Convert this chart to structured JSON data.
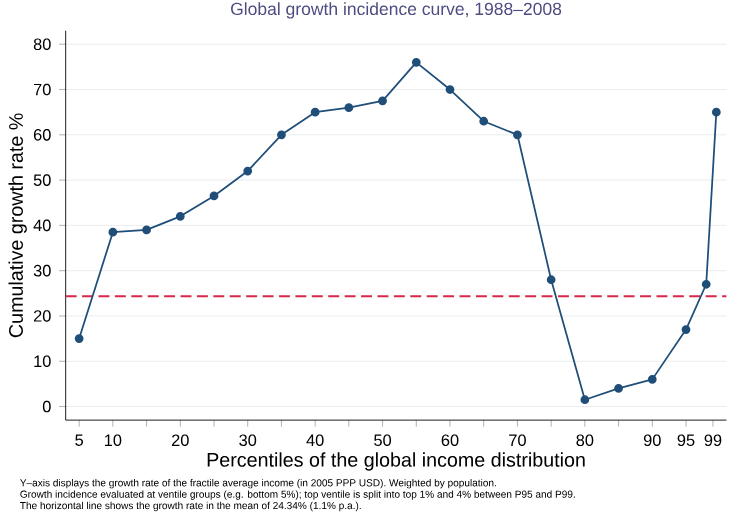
{
  "chart_data": {
    "type": "line",
    "title": "Global growth incidence curve, 1988–2008",
    "xlabel": "Percentiles of the global income distribution",
    "ylabel": "Cumulative growth rate %",
    "x": [
      5,
      10,
      15,
      20,
      25,
      30,
      35,
      40,
      45,
      50,
      55,
      60,
      65,
      70,
      75,
      80,
      85,
      90,
      95,
      98,
      99.5
    ],
    "series": [
      {
        "color": "#1f4e79",
        "values": [
          15,
          38.5,
          39,
          42,
          46.5,
          52,
          60,
          65,
          66,
          67.5,
          76,
          70,
          63,
          60,
          28,
          1.5,
          4,
          6,
          17,
          27,
          65
        ]
      }
    ],
    "xlim": [
      3,
      101
    ],
    "ylim": [
      -3,
      83
    ],
    "xticks": [
      5,
      10,
      {
        "value": 15,
        "label": null
      },
      20,
      {
        "value": 25,
        "label": null
      },
      30,
      {
        "value": 35,
        "label": null
      },
      40,
      {
        "value": 45,
        "label": null
      },
      50,
      {
        "value": 55,
        "label": null
      },
      60,
      {
        "value": 65,
        "label": null
      },
      70,
      {
        "value": 75,
        "label": null
      },
      80,
      {
        "value": 85,
        "label": null
      },
      90,
      95,
      99
    ],
    "yticks": [
      0,
      10,
      20,
      30,
      40,
      50,
      60,
      70,
      80
    ],
    "grid": "y",
    "marker": "circle",
    "line_style": "solid",
    "ref_lines": [
      {
        "axis": "y",
        "value": 24.34,
        "color": "#d6294a",
        "line_style": "dashed"
      }
    ],
    "annotations": [
      "Y–axis displays the growth rate of the fractile average income (in 2005 PPP USD). Weighted by population.",
      "Growth incidence evaluated at ventile groups (e.g. bottom 5%); top ventile is split into top 1% and 4% between P95 and P99.",
      "The horizontal line shows the growth rate in the mean of 24.34% (1.1% p.a.)."
    ]
  }
}
